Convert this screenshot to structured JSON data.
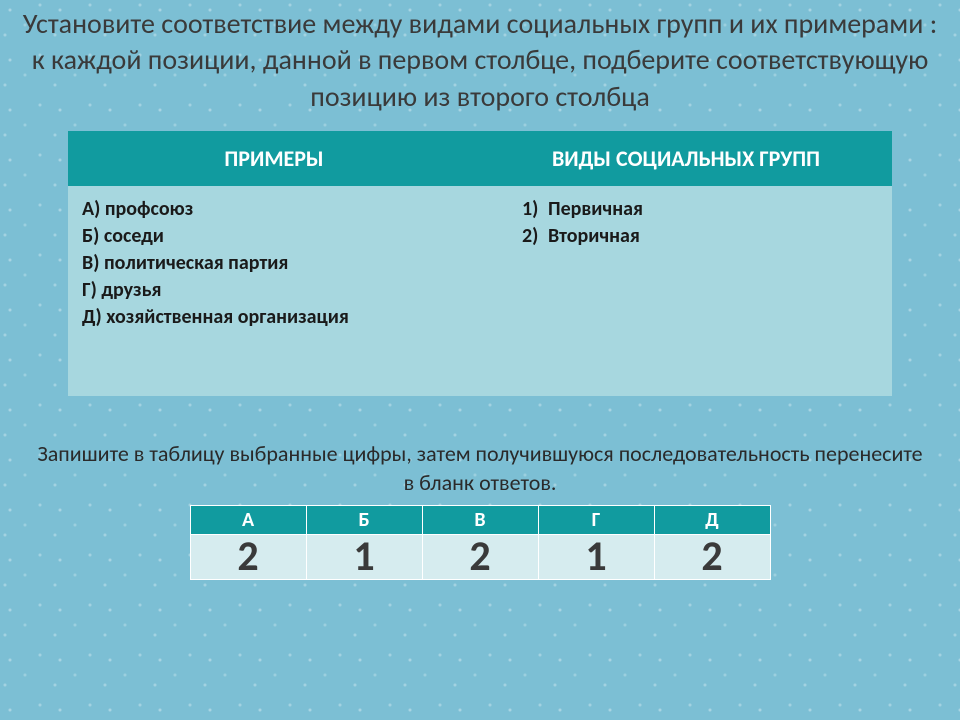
{
  "title": "Установите соответствие между видами социальных групп и их примерами : к каждой позиции, данной в первом столбце, подберите соответствующую позицию из второго столбца",
  "mainTable": {
    "headers": [
      "ПРИМЕРЫ",
      "ВИДЫ СОЦИАЛЬНЫХ ГРУПП"
    ],
    "examples": [
      "А) профсоюз",
      "Б) соседи",
      "В) политическая партия",
      "Г) друзья",
      "Д) хозяйственная организация"
    ],
    "types": [
      {
        "num": "1)",
        "label": "Первичная"
      },
      {
        "num": "2)",
        "label": "Вторичная"
      }
    ]
  },
  "caption": "Запишите в таблицу выбранные цифры, затем получившуюся последовательность перенесите в бланк ответов.",
  "answerTable": {
    "headers": [
      "А",
      "Б",
      "В",
      "Г",
      "Д"
    ],
    "values": [
      "2",
      "1",
      "2",
      "1",
      "2"
    ]
  },
  "colors": {
    "headerBg": "#119b9f",
    "headerText": "#ffffff",
    "cellBg": "#a7d7df",
    "answerCellBg": "#d6ecef",
    "bodyBg": "#7cbfd4",
    "titleColor": "#3a3a3a"
  },
  "fonts": {
    "title_pt": 28,
    "table_header_pt": 22,
    "table_cell_pt": 20,
    "caption_pt": 22,
    "answer_header_pt": 20,
    "answer_value_pt": 42
  }
}
